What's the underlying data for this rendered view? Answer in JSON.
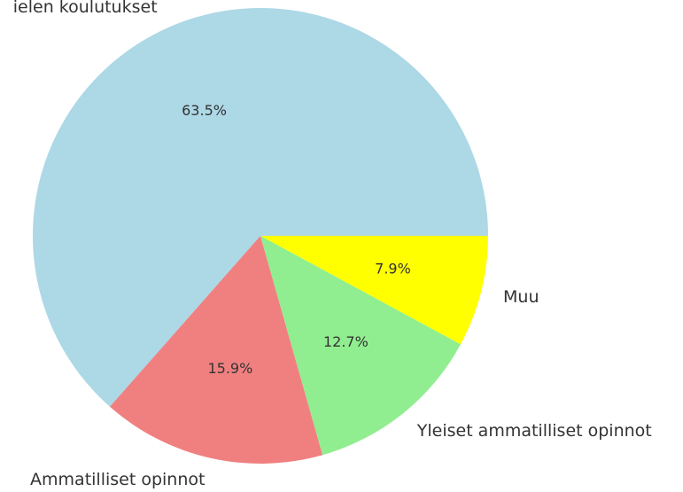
{
  "chart_data": {
    "type": "pie",
    "categories": [
      "ielen koulutukset",
      "Ammatilliset opinnot",
      "Yleiset ammatilliset opinnot",
      "Muu"
    ],
    "values": [
      63.5,
      15.9,
      12.7,
      7.9
    ],
    "value_labels": [
      "63.5%",
      "15.9%",
      "12.7%",
      "7.9%"
    ],
    "colors": [
      "#add8e6",
      "#f08080",
      "#90ee90",
      "#ffff00"
    ]
  }
}
